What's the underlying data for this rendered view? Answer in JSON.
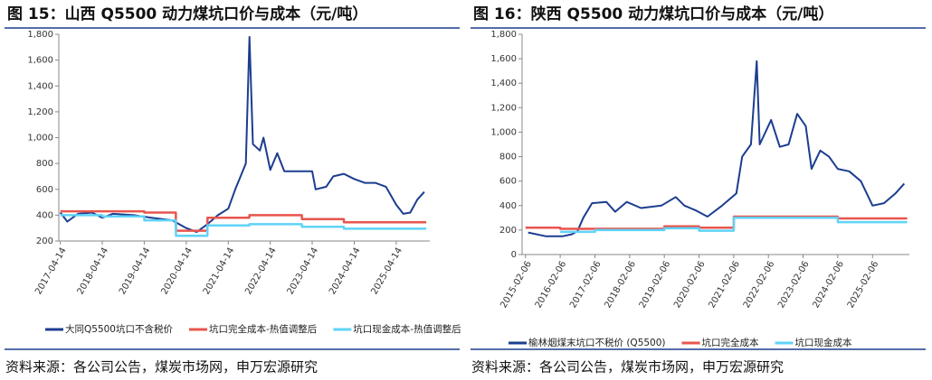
{
  "chart_data": [
    {
      "type": "line",
      "title": "图 15：山西 Q5500 动力煤坑口价与成本（元/吨）",
      "source": "资料来源：各公司公告，煤炭市场网，申万宏源研究",
      "xlim": [
        "2017-04-01",
        "2026-01-31"
      ],
      "xticks": [
        "2017-04-14",
        "2018-04-14",
        "2019-04-14",
        "2020-04-14",
        "2021-04-14",
        "2022-04-14",
        "2023-04-14",
        "2024-04-14",
        "2025-04-14"
      ],
      "ylim": [
        200,
        1800
      ],
      "yticks": [
        200,
        400,
        600,
        800,
        {
          "value": 1000,
          "label": "1,000"
        },
        {
          "value": 1200,
          "label": "1,200"
        },
        {
          "value": 1400,
          "label": "1,400"
        },
        {
          "value": 1600,
          "label": "1,600"
        },
        {
          "value": 1800,
          "label": "1,800"
        }
      ],
      "series": [
        {
          "name": "大同Q5500坑口不含税价",
          "color": "#1c3d8f",
          "x": [
            "2017-04-14",
            "2017-06-14",
            "2017-09-14",
            "2018-01-14",
            "2018-04-14",
            "2018-07-14",
            "2019-01-14",
            "2019-06-14",
            "2019-12-14",
            "2020-04-14",
            "2020-07-14",
            "2020-10-14",
            "2021-01-14",
            "2021-04-14",
            "2021-06-14",
            "2021-09-14",
            "2021-10-15",
            "2021-11-14",
            "2022-01-14",
            "2022-02-14",
            "2022-04-14",
            "2022-06-14",
            "2022-08-14",
            "2023-01-14",
            "2023-04-14",
            "2023-05-14",
            "2023-08-14",
            "2023-10-14",
            "2024-01-14",
            "2024-04-14",
            "2024-07-14",
            "2024-10-14",
            "2025-01-14",
            "2025-04-14",
            "2025-06-14",
            "2025-08-14",
            "2025-10-14",
            "2025-12-14"
          ],
          "values": [
            420,
            350,
            410,
            420,
            380,
            410,
            400,
            380,
            360,
            300,
            270,
            330,
            400,
            450,
            600,
            800,
            1780,
            950,
            900,
            1000,
            750,
            880,
            740,
            740,
            740,
            600,
            620,
            700,
            720,
            680,
            650,
            650,
            620,
            480,
            410,
            420,
            520,
            580
          ]
        },
        {
          "name": "坑口完全成本-热值调整后",
          "color": "#e8554e",
          "x": [
            "2017-04-14",
            "2019-04-14",
            "2019-04-15",
            "2020-01-14",
            "2020-01-15",
            "2020-10-14",
            "2020-10-15",
            "2021-10-14",
            "2021-10-15",
            "2023-01-14",
            "2023-01-15",
            "2024-01-14",
            "2024-01-15",
            "2025-12-31"
          ],
          "values": [
            430,
            430,
            420,
            420,
            280,
            280,
            380,
            380,
            400,
            400,
            370,
            370,
            345,
            345
          ]
        },
        {
          "name": "坑口现金成本-热值调整后",
          "color": "#5fd3f7",
          "x": [
            "2017-04-14",
            "2018-04-14",
            "2018-04-15",
            "2019-04-14",
            "2019-04-15",
            "2020-01-14",
            "2020-01-15",
            "2020-10-14",
            "2020-10-15",
            "2021-10-14",
            "2021-10-15",
            "2023-01-14",
            "2023-01-15",
            "2024-01-14",
            "2024-01-15",
            "2025-12-31"
          ],
          "values": [
            400,
            400,
            390,
            390,
            360,
            360,
            240,
            240,
            320,
            320,
            330,
            330,
            310,
            310,
            295,
            295
          ]
        }
      ]
    },
    {
      "type": "line",
      "title": "图 16：陕西 Q5500 动力煤坑口价与成本（元/吨）",
      "source": "资料来源：各公司公告，煤炭市场网，申万宏源研究",
      "xlim": [
        "2015-01-01",
        "2026-03-01"
      ],
      "xticks": [
        "2015-02-06",
        "2016-02-06",
        "2017-02-06",
        "2018-02-06",
        "2019-02-06",
        "2020-02-06",
        "2021-02-06",
        "2022-02-06",
        "2023-02-06",
        "2024-02-06",
        "2025-02-06"
      ],
      "ylim": [
        0,
        1800
      ],
      "yticks": [
        0,
        200,
        400,
        600,
        800,
        {
          "value": 1000,
          "label": "1,000"
        },
        {
          "value": 1200,
          "label": "1,200"
        },
        {
          "value": 1400,
          "label": "1,400"
        },
        {
          "value": 1600,
          "label": "1,600"
        },
        {
          "value": 1800,
          "label": "1,800"
        }
      ],
      "series": [
        {
          "name": "榆林烟煤末坑口不税价 (Q5500)",
          "color": "#1c3d8f",
          "x": [
            "2015-03-06",
            "2015-09-06",
            "2016-03-06",
            "2016-06-06",
            "2016-08-06",
            "2016-10-06",
            "2017-01-06",
            "2017-06-06",
            "2017-09-06",
            "2018-01-06",
            "2018-06-06",
            "2019-01-06",
            "2019-06-06",
            "2019-09-06",
            "2020-01-06",
            "2020-05-06",
            "2020-10-06",
            "2021-03-06",
            "2021-05-06",
            "2021-08-06",
            "2021-10-06",
            "2021-11-06",
            "2022-03-06",
            "2022-06-06",
            "2022-09-06",
            "2022-12-06",
            "2023-03-06",
            "2023-05-06",
            "2023-08-06",
            "2023-11-06",
            "2024-02-06",
            "2024-06-06",
            "2024-10-06",
            "2025-02-06",
            "2025-06-06",
            "2025-10-06",
            "2026-01-06"
          ],
          "values": [
            180,
            150,
            150,
            165,
            190,
            300,
            420,
            430,
            350,
            430,
            380,
            400,
            470,
            400,
            360,
            310,
            400,
            500,
            800,
            900,
            1580,
            900,
            1100,
            880,
            900,
            1150,
            1050,
            700,
            850,
            800,
            700,
            680,
            600,
            400,
            420,
            500,
            580
          ]
        },
        {
          "name": "坑口完全成本",
          "color": "#e8554e",
          "x": [
            "2015-02-06",
            "2016-02-06",
            "2016-02-07",
            "2019-02-06",
            "2019-02-07",
            "2020-02-06",
            "2020-02-07",
            "2021-02-06",
            "2021-02-07",
            "2024-02-06",
            "2024-02-07",
            "2026-02-06"
          ],
          "values": [
            220,
            220,
            210,
            210,
            230,
            230,
            220,
            220,
            310,
            310,
            295,
            295
          ]
        },
        {
          "name": "坑口现金成本",
          "color": "#5fd3f7",
          "x": [
            "2016-02-06",
            "2017-02-06",
            "2017-02-07",
            "2019-02-06",
            "2019-02-07",
            "2020-02-06",
            "2020-02-07",
            "2021-02-06",
            "2021-02-07",
            "2024-02-06",
            "2024-02-07",
            "2026-02-06"
          ],
          "values": [
            185,
            185,
            200,
            200,
            215,
            215,
            195,
            195,
            300,
            300,
            265,
            265
          ]
        }
      ]
    }
  ]
}
